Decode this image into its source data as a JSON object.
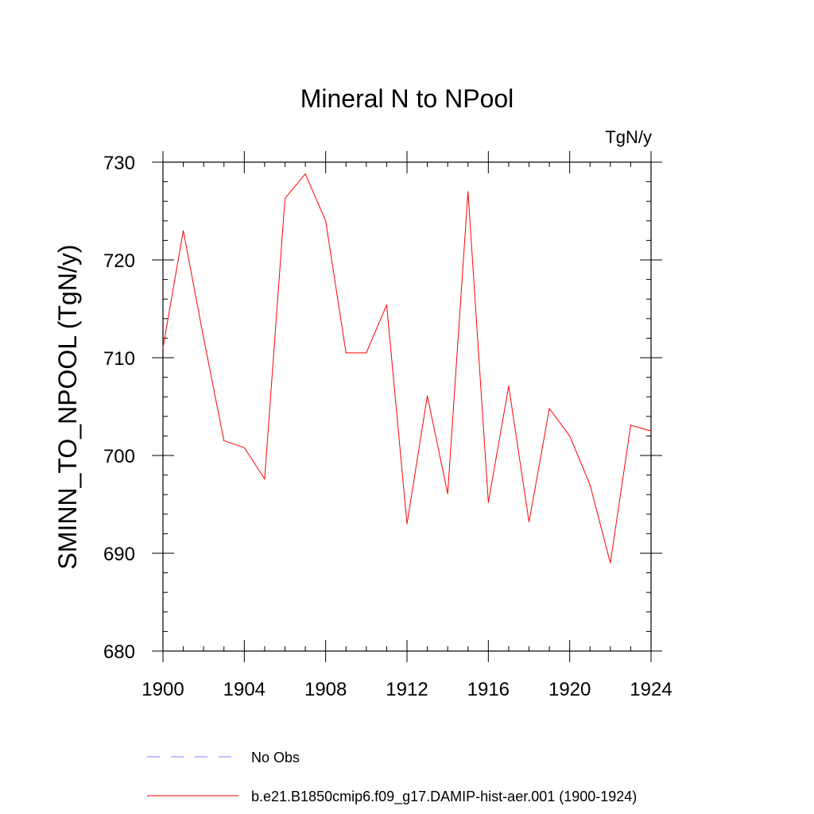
{
  "chart_data": {
    "type": "line",
    "title": "Mineral N to NPool",
    "units_label": "TgN/y",
    "ylabel": "SMINN_TO_NPOOL  (TgN/y)",
    "xlabel": "",
    "xlim": [
      1900,
      1924
    ],
    "ylim": [
      680,
      730
    ],
    "x_ticks": [
      1900,
      1904,
      1908,
      1912,
      1916,
      1920,
      1924
    ],
    "y_ticks": [
      680,
      690,
      700,
      710,
      720,
      730
    ],
    "grid": false,
    "legend_position": "bottom",
    "x": [
      1900,
      1901,
      1902,
      1903,
      1904,
      1905,
      1906,
      1907,
      1908,
      1909,
      1910,
      1911,
      1912,
      1913,
      1914,
      1915,
      1916,
      1917,
      1918,
      1919,
      1920,
      1921,
      1922,
      1923,
      1924
    ],
    "series": [
      {
        "name": "b.e21.B1850cmip6.f09_g17.DAMIP-hist-aer.001 (1900-1924)",
        "color": "#ff0000",
        "style": "solid",
        "values": [
          711.0,
          723.0,
          712.0,
          701.5,
          700.8,
          697.6,
          726.3,
          728.8,
          724.0,
          710.5,
          710.5,
          715.4,
          693.0,
          706.1,
          696.1,
          727.0,
          695.2,
          707.1,
          693.2,
          704.8,
          702.0,
          697.0,
          689.0,
          703.1,
          702.5
        ]
      }
    ],
    "legend": [
      {
        "label": "No Obs",
        "color": "#8080ff",
        "style": "dashed"
      },
      {
        "label": "b.e21.B1850cmip6.f09_g17.DAMIP-hist-aer.001 (1900-1924)",
        "color": "#ff0000",
        "style": "solid"
      }
    ]
  }
}
